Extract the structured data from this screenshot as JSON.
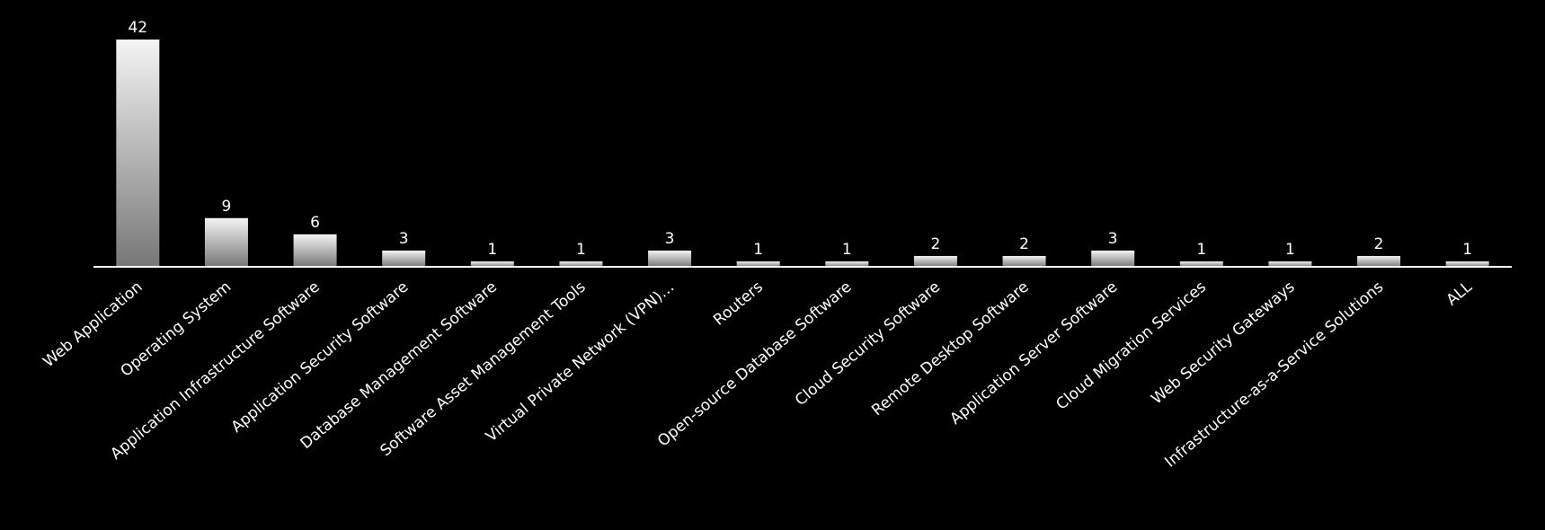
{
  "chart_data": {
    "type": "bar",
    "categories": [
      "Web Application",
      "Operating System",
      "Application Infrastructure Software",
      "Application Security Software",
      "Database Management Software",
      "Software Asset Management Tools",
      "Virtual Private Network (VPN)…",
      "Routers",
      "Open-source Database Software",
      "Cloud Security Software",
      "Remote Desktop Software",
      "Application Server Software",
      "Cloud Migration Services",
      "Web Security Gateways",
      "Infrastructure-as-a-Service Solutions",
      "ALL"
    ],
    "values": [
      42,
      9,
      6,
      3,
      1,
      1,
      3,
      1,
      1,
      2,
      2,
      3,
      1,
      1,
      2,
      1
    ],
    "color": "#e8e8e8"
  }
}
